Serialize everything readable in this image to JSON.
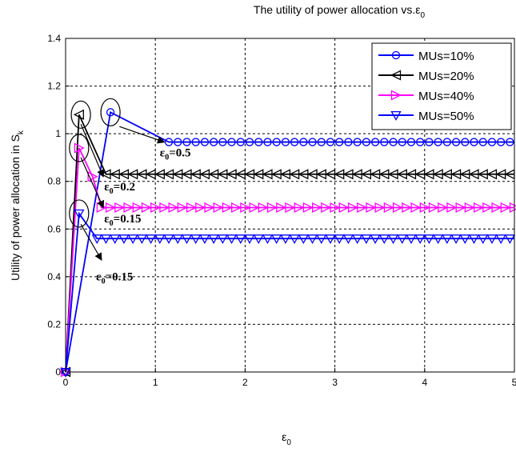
{
  "chart_data": {
    "type": "line",
    "title": "The utility of power allocation vs.",
    "title_symbol": "ε",
    "title_subscript": "0",
    "xlabel_symbol": "ε",
    "xlabel_subscript": "0",
    "ylabel": "Utility of power allocation in S",
    "ylabel_subscript": "k",
    "xlim": [
      0,
      5
    ],
    "ylim": [
      0,
      1.4
    ],
    "xticks": [
      0,
      1,
      2,
      3,
      4,
      5
    ],
    "xtick_labels": [
      "0",
      "1",
      "2",
      "3",
      "4",
      "5"
    ],
    "yticks": [
      0,
      0.2,
      0.4,
      0.6,
      0.8,
      1.0,
      1.2,
      1.4
    ],
    "ytick_labels": [
      "0",
      "0.2",
      "0.4",
      "0.6",
      "0.8",
      "1",
      "1.2",
      "1.4"
    ],
    "grid": true,
    "legend_position": "top-right",
    "series": [
      {
        "name": "MUs=10%",
        "color": "#0000ff",
        "marker": "circle",
        "x": [
          0,
          0.5,
          1.15,
          5
        ],
        "y": [
          0,
          1.09,
          0.965,
          0.965
        ],
        "marker_start": 1.15,
        "marker_step": 0.1
      },
      {
        "name": "MUs=20%",
        "color": "#000000",
        "marker": "triangle-left",
        "x": [
          0,
          0.15,
          0.45,
          5
        ],
        "y": [
          0,
          1.08,
          0.83,
          0.83
        ],
        "marker_start": 0.45,
        "marker_step": 0.1
      },
      {
        "name": "MUs=40%",
        "color": "#ff00ff",
        "marker": "triangle-right",
        "x": [
          0,
          0.15,
          0.3,
          0.4,
          5
        ],
        "y": [
          0,
          0.94,
          0.82,
          0.69,
          0.69
        ],
        "marker_start": 0.4,
        "marker_step": 0.1
      },
      {
        "name": "MUs=50%",
        "color": "#0000ff",
        "marker": "triangle-down",
        "x": [
          0,
          0.15,
          0.35,
          5
        ],
        "y": [
          0,
          0.665,
          0.56,
          0.56
        ],
        "marker_start": 0.35,
        "marker_step": 0.1
      }
    ],
    "annotations": [
      {
        "symbol": "ε",
        "sub": "0",
        "text": "=0.5",
        "x": 1.05,
        "y": 0.905,
        "circle": [
          0.5,
          1.09
        ],
        "arrow_from": [
          0.6,
          1.03
        ],
        "arrow_to": [
          1.1,
          0.965
        ]
      },
      {
        "symbol": "ε",
        "sub": "0",
        "text": "=0.2",
        "x": 0.43,
        "y": 0.762,
        "circle": [
          0.17,
          1.08
        ],
        "arrow_from": [
          0.17,
          1.04
        ],
        "arrow_to": [
          0.42,
          0.82
        ]
      },
      {
        "symbol": "ε",
        "sub": "0",
        "text": "=0.15",
        "x": 0.43,
        "y": 0.628,
        "circle": [
          0.15,
          0.94
        ],
        "arrow_from": [
          0.17,
          0.9
        ],
        "arrow_to": [
          0.42,
          0.69
        ]
      },
      {
        "symbol": "ε",
        "sub": "0",
        "text": "=0.15",
        "x": 0.34,
        "y": 0.385,
        "circle": [
          0.15,
          0.665
        ],
        "arrow_from": [
          0.17,
          0.62
        ],
        "arrow_to": [
          0.4,
          0.47
        ]
      }
    ]
  }
}
